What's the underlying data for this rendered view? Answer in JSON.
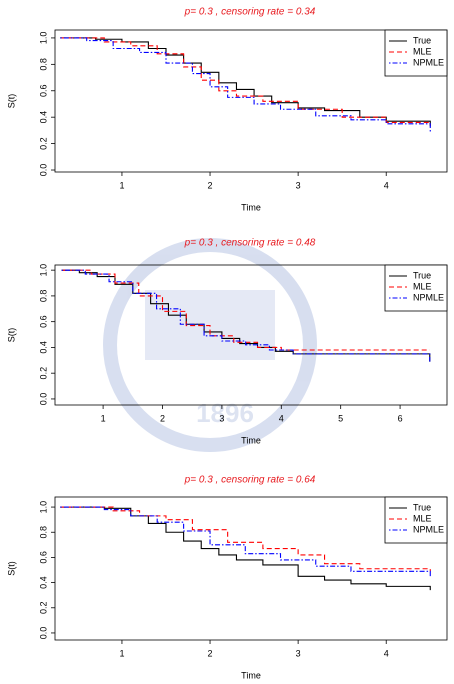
{
  "watermark": "1896",
  "chart_data": [
    {
      "type": "step",
      "title": "p= 0.3 , censoring rate =  0.34",
      "xlabel": "Time",
      "ylabel": "S(t)",
      "xlim": [
        0.24,
        4.69
      ],
      "ylim": [
        -0.015,
        1.06
      ],
      "xticks": [
        1,
        2,
        3,
        4
      ],
      "yticks": [
        {
          "value": 0,
          "label": "0.0"
        },
        {
          "value": 0.2,
          "label": "0.2"
        },
        {
          "value": 0.4,
          "label": "0.4"
        },
        {
          "value": 0.6,
          "label": "0.6"
        },
        {
          "value": 0.8,
          "label": "0.8"
        },
        {
          "value": 1,
          "label": "1.0"
        }
      ],
      "legend": "top-right",
      "series": [
        {
          "name": "True",
          "color": "#000000",
          "dash": "solid",
          "x": [
            0.3,
            0.7,
            1.0,
            1.3,
            1.5,
            1.7,
            1.9,
            2.1,
            2.3,
            2.5,
            2.7,
            3.0,
            3.3,
            3.7,
            4.0,
            4.5
          ],
          "values": [
            1.0,
            0.99,
            0.97,
            0.92,
            0.87,
            0.81,
            0.74,
            0.66,
            0.61,
            0.56,
            0.51,
            0.47,
            0.45,
            0.4,
            0.37,
            0.33
          ]
        },
        {
          "name": "MLE",
          "color": "#ff0000",
          "dash": "dashed",
          "x": [
            0.3,
            0.8,
            1.1,
            1.4,
            1.7,
            1.9,
            2.1,
            2.3,
            2.6,
            3.0,
            3.5,
            4.0,
            4.5
          ],
          "values": [
            1.0,
            0.97,
            0.94,
            0.88,
            0.78,
            0.68,
            0.6,
            0.56,
            0.52,
            0.46,
            0.4,
            0.36,
            0.34
          ]
        },
        {
          "name": "NPMLE",
          "color": "#0000ff",
          "dash": "dotdash",
          "x": [
            0.3,
            0.6,
            0.9,
            1.2,
            1.5,
            1.8,
            2.0,
            2.2,
            2.5,
            2.8,
            3.2,
            3.6,
            4.0,
            4.5
          ],
          "values": [
            1.0,
            0.98,
            0.92,
            0.89,
            0.81,
            0.73,
            0.63,
            0.55,
            0.5,
            0.46,
            0.41,
            0.38,
            0.35,
            0.29
          ]
        }
      ]
    },
    {
      "type": "step",
      "title": "p= 0.3 , censoring rate =  0.48",
      "xlabel": "Time",
      "ylabel": "S(t)",
      "xlim": [
        0.19,
        6.79
      ],
      "ylim": [
        -0.047,
        1.04
      ],
      "xticks": [
        1,
        2,
        3,
        4,
        5,
        6
      ],
      "yticks": [
        {
          "value": 0,
          "label": "0.0"
        },
        {
          "value": 0.2,
          "label": "0.2"
        },
        {
          "value": 0.4,
          "label": "0.4"
        },
        {
          "value": 0.6,
          "label": "0.6"
        },
        {
          "value": 0.8,
          "label": "0.8"
        },
        {
          "value": 1,
          "label": "1.0"
        }
      ],
      "legend": "top-right",
      "series": [
        {
          "name": "True",
          "color": "#000000",
          "dash": "solid",
          "x": [
            0.3,
            0.6,
            0.9,
            1.2,
            1.5,
            1.8,
            2.1,
            2.4,
            2.7,
            3.0,
            3.3,
            3.6,
            3.9,
            4.2,
            6.5
          ],
          "values": [
            1.0,
            0.98,
            0.95,
            0.89,
            0.82,
            0.74,
            0.65,
            0.58,
            0.52,
            0.47,
            0.43,
            0.4,
            0.37,
            0.35,
            0.29
          ]
        },
        {
          "name": "MLE",
          "color": "#ff0000",
          "dash": "dashed",
          "x": [
            0.3,
            0.8,
            1.2,
            1.6,
            2.0,
            2.4,
            2.8,
            3.2,
            3.6,
            4.0,
            6.5
          ],
          "values": [
            1.0,
            0.97,
            0.9,
            0.8,
            0.68,
            0.57,
            0.49,
            0.44,
            0.4,
            0.38,
            0.38
          ]
        },
        {
          "name": "NPMLE",
          "color": "#0000ff",
          "dash": "dotdash",
          "x": [
            0.3,
            0.7,
            1.1,
            1.5,
            1.9,
            2.3,
            2.7,
            3.0,
            3.4,
            3.8,
            4.2,
            6.5
          ],
          "values": [
            1.0,
            0.97,
            0.91,
            0.82,
            0.7,
            0.58,
            0.49,
            0.45,
            0.42,
            0.38,
            0.35,
            0.29
          ]
        }
      ]
    },
    {
      "type": "step",
      "title": "p= 0.3 , censoring rate =  0.64",
      "xlabel": "Time",
      "ylabel": "S(t)",
      "xlim": [
        0.24,
        4.69
      ],
      "ylim": [
        -0.056,
        1.08
      ],
      "xticks": [
        1,
        2,
        3,
        4
      ],
      "yticks": [
        {
          "value": 0,
          "label": "0.0"
        },
        {
          "value": 0.2,
          "label": "0.2"
        },
        {
          "value": 0.4,
          "label": "0.4"
        },
        {
          "value": 0.6,
          "label": "0.6"
        },
        {
          "value": 0.8,
          "label": "0.8"
        },
        {
          "value": 1,
          "label": "1.0"
        }
      ],
      "legend": "top-right",
      "series": [
        {
          "name": "True",
          "color": "#000000",
          "dash": "solid",
          "x": [
            0.3,
            0.8,
            1.1,
            1.3,
            1.5,
            1.7,
            1.9,
            2.1,
            2.3,
            2.6,
            3.0,
            3.3,
            3.6,
            4.0,
            4.5
          ],
          "values": [
            1.0,
            0.99,
            0.93,
            0.87,
            0.8,
            0.73,
            0.67,
            0.62,
            0.58,
            0.54,
            0.45,
            0.42,
            0.39,
            0.37,
            0.34
          ]
        },
        {
          "name": "MLE",
          "color": "#ff0000",
          "dash": "dashed",
          "x": [
            0.3,
            0.9,
            1.2,
            1.5,
            1.8,
            2.2,
            2.6,
            3.0,
            3.3,
            3.7,
            4.5
          ],
          "values": [
            1.0,
            0.97,
            0.93,
            0.9,
            0.82,
            0.72,
            0.67,
            0.62,
            0.55,
            0.51,
            0.49
          ]
        },
        {
          "name": "NPMLE",
          "color": "#0000ff",
          "dash": "dotdash",
          "x": [
            0.3,
            0.8,
            1.1,
            1.4,
            1.7,
            2.0,
            2.4,
            2.8,
            3.2,
            3.6,
            4.5
          ],
          "values": [
            1.0,
            0.98,
            0.93,
            0.88,
            0.81,
            0.7,
            0.63,
            0.58,
            0.53,
            0.49,
            0.45
          ]
        }
      ]
    }
  ]
}
